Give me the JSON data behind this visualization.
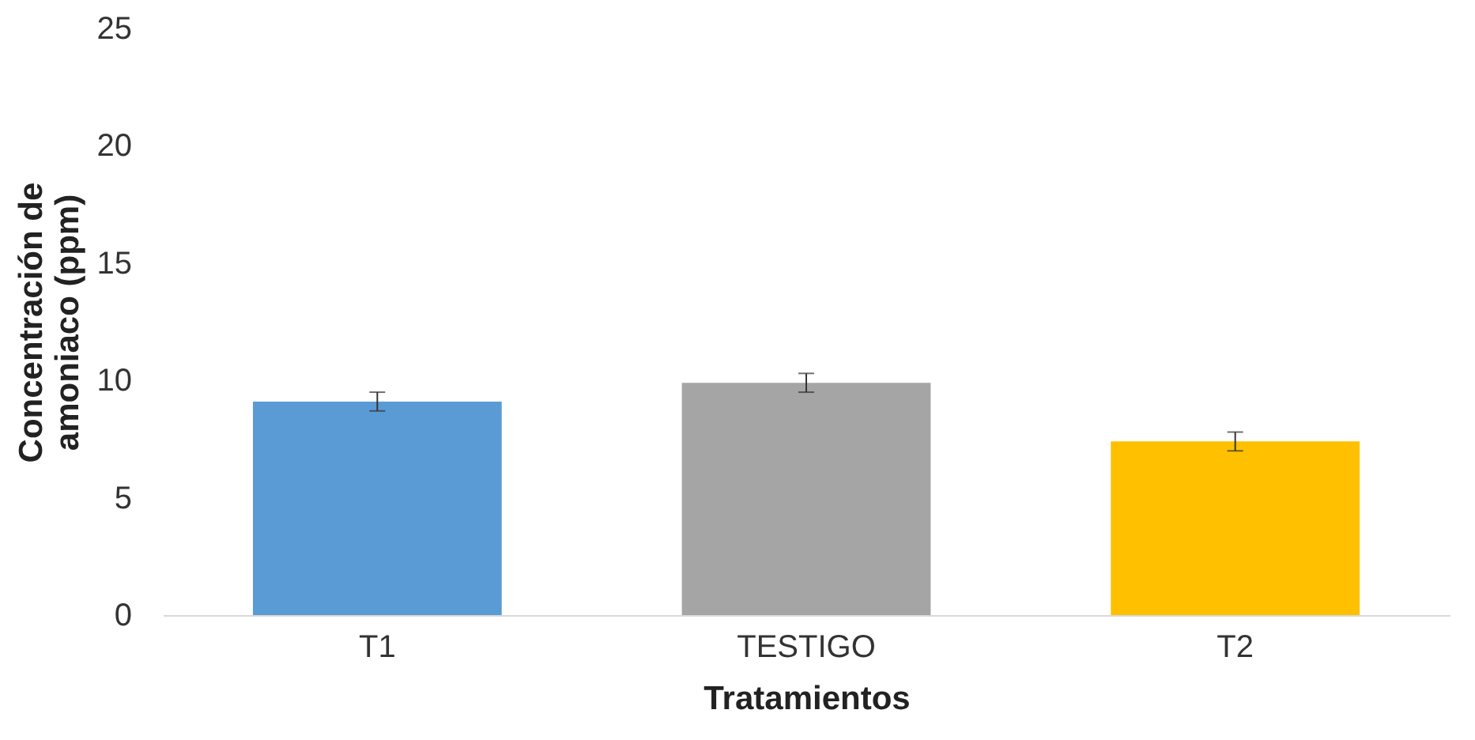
{
  "chart_data": {
    "type": "bar",
    "categories": [
      "T1",
      "TESTIGO",
      "T2"
    ],
    "values": [
      9.1,
      9.9,
      7.4
    ],
    "colors": [
      "#5b9bd5",
      "#a5a5a5",
      "#ffc000"
    ],
    "errors": [
      0.4,
      0.4,
      0.4
    ],
    "xlabel": "Tratamientos",
    "ylabel": "Concentración de\namoniaco (ppm)",
    "ylim": [
      0,
      25
    ],
    "yticks": [
      0,
      5,
      10,
      15,
      20,
      25
    ],
    "grid": false
  }
}
